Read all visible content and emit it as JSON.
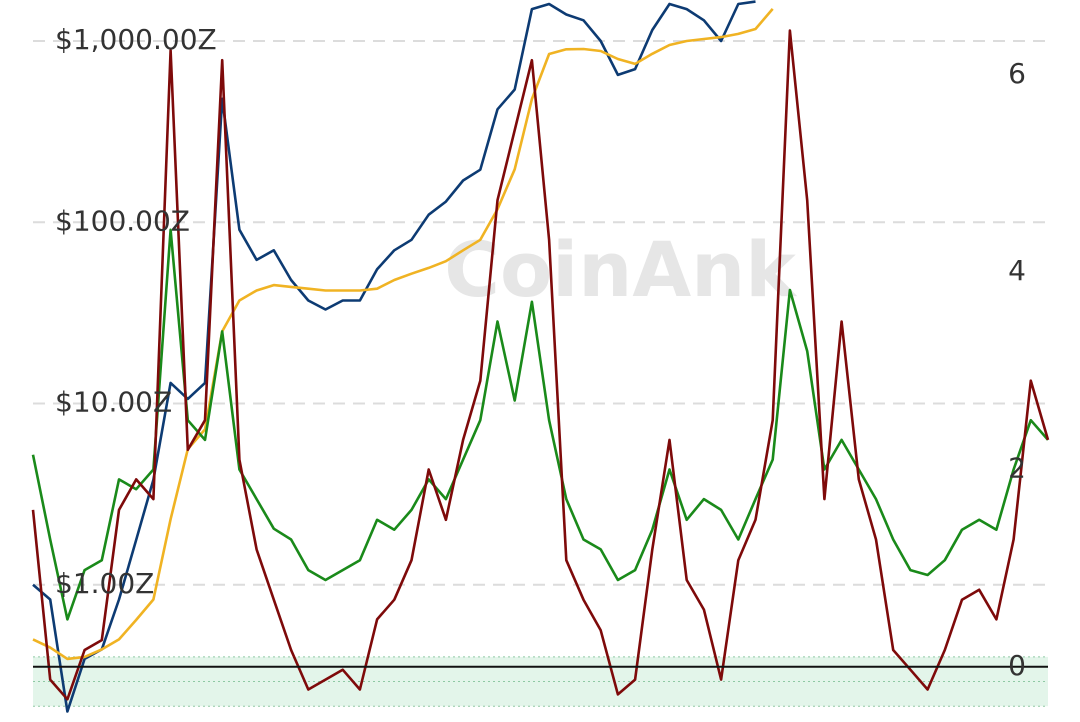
{
  "chart_data": {
    "type": "line",
    "watermark": "CoinAnk",
    "ylog": true,
    "ylim": [
      0.175,
      1683
    ],
    "yticks": [
      {
        "value": 1,
        "label": "$1.00Z"
      },
      {
        "value": 10,
        "label": "$10.00Z"
      },
      {
        "value": 100,
        "label": "$100.00Z"
      },
      {
        "value": 1000,
        "label": "$1,000.00Z"
      }
    ],
    "y2lim": [
      -0.56,
      6.76
    ],
    "y2ticks": [
      6,
      4,
      2,
      0
    ],
    "grid": true,
    "band": [
      -0.4,
      0.1
    ],
    "band_color": "#e3f5ea",
    "series": [
      {
        "color": "#0d3b73",
        "values": [
          1.0,
          0.83,
          0.2,
          0.39,
          0.44,
          0.83,
          1.77,
          3.8,
          13,
          10.6,
          13,
          480,
          91,
          62,
          70,
          48,
          37,
          33,
          37,
          37,
          55,
          70,
          80,
          110,
          130,
          170,
          195,
          420,
          540,
          1500,
          1600,
          1400,
          1300,
          1000,
          650,
          700,
          1150,
          1600,
          1500,
          1300,
          1000,
          1600,
          1650,
          null,
          null,
          null,
          null,
          null,
          null,
          null,
          null,
          null,
          null,
          null,
          null,
          null,
          null,
          null,
          null,
          null
        ]
      },
      {
        "color": "#f0b323",
        "values": [
          0.5,
          0.45,
          0.39,
          0.4,
          0.44,
          0.5,
          0.64,
          0.83,
          2.3,
          5.6,
          7.2,
          25,
          37,
          42,
          45,
          44,
          43,
          42,
          42,
          42,
          43,
          48,
          52,
          56,
          61,
          70,
          80,
          118,
          196,
          478,
          848,
          900,
          903,
          880,
          795,
          747,
          850,
          950,
          1000,
          1026,
          1050,
          1094,
          1165,
          1503,
          null,
          null,
          null,
          null,
          null,
          null,
          null,
          null,
          null,
          null,
          null,
          null,
          null,
          null,
          null,
          null
        ]
      },
      {
        "color": "#1a8a1a",
        "axis": "y2",
        "values": [
          2.15,
          1.29,
          0.48,
          0.98,
          1.08,
          1.9,
          1.8,
          2.0,
          4.43,
          2.5,
          2.3,
          3.4,
          2.0,
          1.7,
          1.4,
          1.29,
          0.98,
          0.88,
          0.98,
          1.08,
          1.49,
          1.39,
          1.59,
          1.9,
          1.7,
          2.1,
          2.5,
          3.5,
          2.7,
          3.7,
          2.5,
          1.7,
          1.29,
          1.19,
          0.88,
          0.98,
          1.39,
          2.0,
          1.49,
          1.7,
          1.59,
          1.29,
          1.7,
          2.1,
          3.82,
          3.2,
          2.0,
          2.3,
          2.0,
          1.7,
          1.29,
          0.98,
          0.93,
          1.08,
          1.39,
          1.49,
          1.39,
          2.0,
          2.5,
          2.3
        ]
      },
      {
        "color": "#7e0a0a",
        "axis": "y2",
        "values": [
          1.59,
          -0.13,
          -0.33,
          0.17,
          0.27,
          1.59,
          1.9,
          1.7,
          6.25,
          2.2,
          2.5,
          6.15,
          2.1,
          1.19,
          0.68,
          0.17,
          -0.23,
          -0.13,
          -0.03,
          -0.23,
          0.48,
          0.68,
          1.08,
          2.0,
          1.49,
          2.3,
          2.9,
          4.73,
          5.44,
          6.15,
          4.33,
          1.08,
          0.68,
          0.37,
          -0.28,
          -0.13,
          1.19,
          2.3,
          0.88,
          0.58,
          -0.13,
          1.08,
          1.49,
          2.5,
          6.45,
          4.73,
          1.7,
          3.5,
          1.9,
          1.29,
          0.17,
          -0.03,
          -0.23,
          0.17,
          0.68,
          0.78,
          0.48,
          1.29,
          2.9,
          2.3
        ]
      }
    ]
  }
}
